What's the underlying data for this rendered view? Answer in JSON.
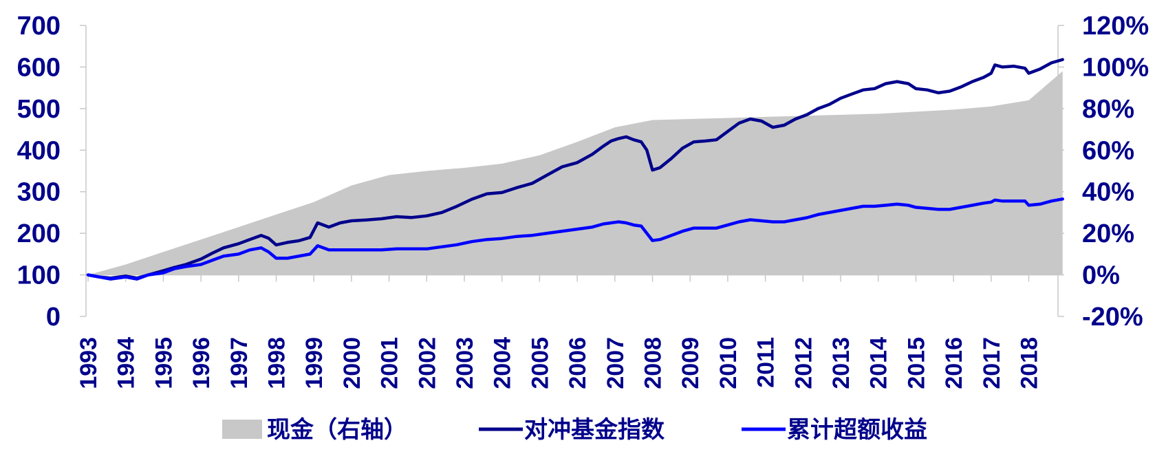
{
  "chart_data": {
    "type": "line",
    "title": "",
    "xlabel": "",
    "ylabel": "",
    "y2label": "",
    "x_categories": [
      "1993",
      "1994",
      "1995",
      "1996",
      "1997",
      "1998",
      "1999",
      "2000",
      "2001",
      "2002",
      "2003",
      "2004",
      "2005",
      "2006",
      "2007",
      "2008",
      "2009",
      "2010",
      "2011",
      "2012",
      "2013",
      "2014",
      "2015",
      "2016",
      "2017",
      "2018"
    ],
    "ylim": [
      0,
      700
    ],
    "y_ticks": [
      "0",
      "100",
      "200",
      "300",
      "400",
      "500",
      "600",
      "700"
    ],
    "y2lim": [
      -0.2,
      1.2
    ],
    "y2_ticks": [
      "-20%",
      "0%",
      "20%",
      "40%",
      "60%",
      "80%",
      "100%",
      "120%"
    ],
    "grid": false,
    "legend_position": "bottom",
    "colors": {
      "area": "#c8c8c8",
      "hedge_index": "#00008b",
      "excess_return": "#0000ff",
      "text": "#00008b"
    },
    "series": [
      {
        "name": "现金（右轴）",
        "kind": "area",
        "axis": "right",
        "x": [
          1993.0,
          1994.0,
          1995.0,
          1996.0,
          1997.0,
          1998.0,
          1999.0,
          2000.0,
          2001.0,
          2002.0,
          2003.0,
          2004.0,
          2005.0,
          2006.0,
          2007.0,
          2008.0,
          2009.0,
          2010.0,
          2011.0,
          2012.0,
          2013.0,
          2014.0,
          2015.0,
          2016.0,
          2017.0,
          2018.0,
          2018.9
        ],
        "values": [
          0.0,
          0.05,
          0.11,
          0.17,
          0.23,
          0.29,
          0.35,
          0.43,
          0.48,
          0.5,
          0.515,
          0.535,
          0.575,
          0.64,
          0.71,
          0.745,
          0.75,
          0.755,
          0.76,
          0.765,
          0.77,
          0.775,
          0.785,
          0.795,
          0.81,
          0.84,
          0.98
        ]
      },
      {
        "name": "对冲基金指数",
        "kind": "line",
        "axis": "left",
        "x": [
          1993.0,
          1993.3,
          1993.6,
          1994.0,
          1994.3,
          1994.6,
          1995.0,
          1995.3,
          1995.6,
          1996.0,
          1996.3,
          1996.6,
          1997.0,
          1997.3,
          1997.6,
          1997.8,
          1998.0,
          1998.3,
          1998.6,
          1998.9,
          1999.1,
          1999.4,
          1999.7,
          2000.0,
          2000.4,
          2000.8,
          2001.2,
          2001.6,
          2002.0,
          2002.4,
          2002.8,
          2003.2,
          2003.6,
          2004.0,
          2004.4,
          2004.8,
          2005.2,
          2005.6,
          2006.0,
          2006.4,
          2006.7,
          2006.9,
          2007.1,
          2007.3,
          2007.5,
          2007.7,
          2007.85,
          2008.0,
          2008.2,
          2008.5,
          2008.8,
          2009.1,
          2009.4,
          2009.7,
          2010.0,
          2010.3,
          2010.6,
          2010.9,
          2011.2,
          2011.5,
          2011.8,
          2012.1,
          2012.4,
          2012.7,
          2013.0,
          2013.3,
          2013.6,
          2013.9,
          2014.2,
          2014.5,
          2014.8,
          2015.0,
          2015.3,
          2015.6,
          2015.9,
          2016.2,
          2016.5,
          2016.8,
          2017.0,
          2017.1,
          2017.3,
          2017.6,
          2017.9,
          2018.0,
          2018.3,
          2018.6,
          2018.9
        ],
        "values": [
          100,
          95,
          92,
          97,
          92,
          100,
          110,
          118,
          125,
          138,
          152,
          165,
          175,
          185,
          195,
          188,
          172,
          178,
          182,
          190,
          225,
          215,
          225,
          230,
          232,
          235,
          240,
          238,
          242,
          250,
          265,
          282,
          295,
          298,
          310,
          320,
          340,
          360,
          370,
          390,
          410,
          422,
          428,
          432,
          425,
          420,
          400,
          352,
          358,
          380,
          405,
          420,
          422,
          425,
          445,
          465,
          475,
          470,
          455,
          460,
          475,
          485,
          500,
          510,
          525,
          535,
          545,
          548,
          560,
          565,
          560,
          548,
          545,
          538,
          542,
          552,
          565,
          575,
          585,
          605,
          600,
          602,
          597,
          585,
          595,
          610,
          618
        ]
      },
      {
        "name": "累计超额收益",
        "kind": "line",
        "axis": "right",
        "x": [
          1993.0,
          1993.3,
          1993.6,
          1994.0,
          1994.3,
          1994.6,
          1995.0,
          1995.3,
          1995.6,
          1996.0,
          1996.3,
          1996.6,
          1997.0,
          1997.3,
          1997.6,
          1997.8,
          1998.0,
          1998.3,
          1998.6,
          1998.9,
          1999.1,
          1999.4,
          1999.7,
          2000.0,
          2000.4,
          2000.8,
          2001.2,
          2001.6,
          2002.0,
          2002.4,
          2002.8,
          2003.2,
          2003.6,
          2004.0,
          2004.4,
          2004.8,
          2005.2,
          2005.6,
          2006.0,
          2006.4,
          2006.7,
          2006.9,
          2007.1,
          2007.3,
          2007.5,
          2007.7,
          2007.85,
          2008.0,
          2008.2,
          2008.5,
          2008.8,
          2009.1,
          2009.4,
          2009.7,
          2010.0,
          2010.3,
          2010.6,
          2010.9,
          2011.2,
          2011.5,
          2011.8,
          2012.1,
          2012.4,
          2012.7,
          2013.0,
          2013.3,
          2013.6,
          2013.9,
          2014.2,
          2014.5,
          2014.8,
          2015.0,
          2015.3,
          2015.6,
          2015.9,
          2016.2,
          2016.5,
          2016.8,
          2017.0,
          2017.1,
          2017.3,
          2017.6,
          2017.9,
          2018.0,
          2018.3,
          2018.6,
          2018.9
        ],
        "values": [
          0.0,
          -0.01,
          -0.02,
          -0.01,
          -0.02,
          0.0,
          0.01,
          0.03,
          0.04,
          0.05,
          0.07,
          0.09,
          0.1,
          0.12,
          0.13,
          0.11,
          0.08,
          0.08,
          0.09,
          0.1,
          0.14,
          0.12,
          0.12,
          0.12,
          0.12,
          0.12,
          0.125,
          0.125,
          0.125,
          0.135,
          0.145,
          0.16,
          0.17,
          0.175,
          0.185,
          0.19,
          0.2,
          0.21,
          0.22,
          0.23,
          0.245,
          0.25,
          0.255,
          0.25,
          0.24,
          0.235,
          0.2,
          0.165,
          0.17,
          0.19,
          0.21,
          0.225,
          0.225,
          0.225,
          0.24,
          0.255,
          0.265,
          0.26,
          0.255,
          0.255,
          0.265,
          0.275,
          0.29,
          0.3,
          0.31,
          0.32,
          0.33,
          0.33,
          0.335,
          0.34,
          0.335,
          0.325,
          0.32,
          0.315,
          0.315,
          0.325,
          0.335,
          0.345,
          0.35,
          0.36,
          0.355,
          0.355,
          0.355,
          0.335,
          0.34,
          0.355,
          0.365
        ]
      }
    ]
  }
}
